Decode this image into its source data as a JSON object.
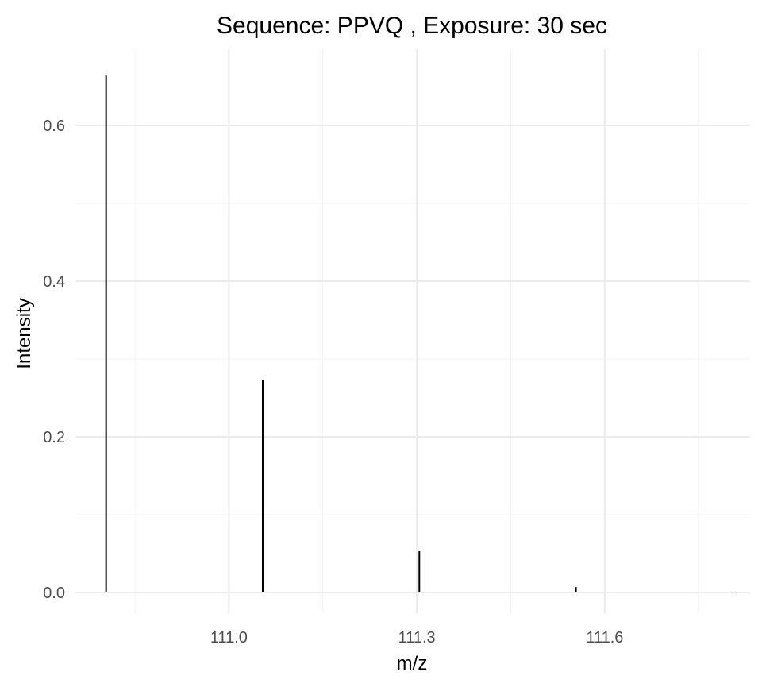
{
  "chart_data": {
    "type": "bar",
    "subtype": "stick-spectrum",
    "title": "Sequence: PPVQ , Exposure: 30 sec",
    "xlabel": "m/z",
    "ylabel": "Intensity",
    "xlim": [
      110.755,
      111.832
    ],
    "ylim": [
      0,
      0.665
    ],
    "x_ticks": [
      111.0,
      111.3,
      111.6
    ],
    "x_tick_labels": [
      "111.0",
      "111.3",
      "111.6"
    ],
    "y_ticks": [
      0.0,
      0.2,
      0.4,
      0.6
    ],
    "y_tick_labels": [
      "0.0",
      "0.2",
      "0.4",
      "0.6"
    ],
    "grid": true,
    "line_color": "#000000",
    "points": [
      {
        "x": 110.804,
        "y": 0.664
      },
      {
        "x": 111.054,
        "y": 0.273
      },
      {
        "x": 111.304,
        "y": 0.053
      },
      {
        "x": 111.554,
        "y": 0.007
      },
      {
        "x": 111.804,
        "y": 0.001
      }
    ]
  }
}
